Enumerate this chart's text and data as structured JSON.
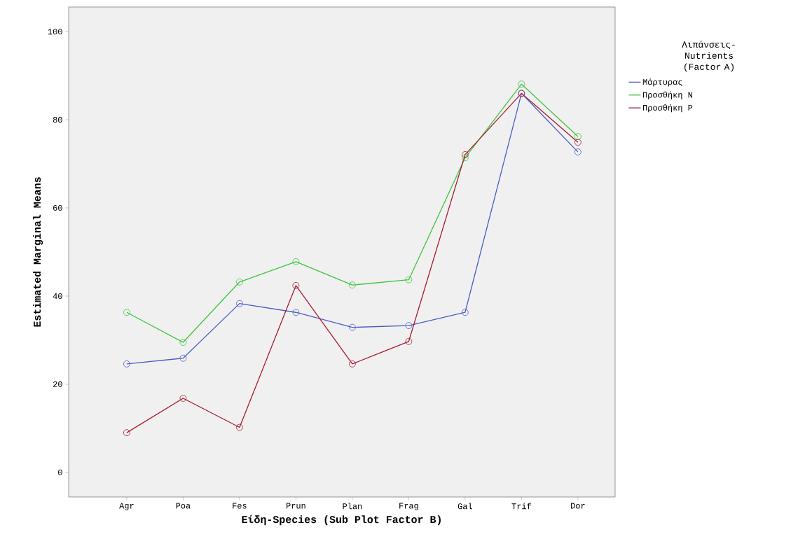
{
  "chart_data": {
    "type": "line",
    "xlabel": "Είδη-Species (Sub Plot Factor B)",
    "ylabel": "Estimated Marginal Means",
    "legend_title": "Λιπάνσεις-Nutrients (Factor A)",
    "categories": [
      "Agr",
      "Poa",
      "Fes",
      "Prun",
      "Plan",
      "Frag",
      "Gal",
      "Trif",
      "Dor"
    ],
    "series": [
      {
        "name": "Μάρτυρας",
        "color": "#4a5cc4",
        "values": [
          24.6,
          25.9,
          38.3,
          36.3,
          32.9,
          33.3,
          36.3,
          86.0,
          72.7
        ]
      },
      {
        "name": "Προσθήκη N",
        "color": "#3cc43c",
        "values": [
          36.3,
          29.5,
          43.2,
          47.8,
          42.5,
          43.7,
          71.4,
          88.1,
          76.2
        ]
      },
      {
        "name": "Προσθήκη P",
        "color": "#a51c30",
        "values": [
          9.0,
          16.8,
          10.2,
          42.4,
          24.6,
          29.7,
          72.1,
          86.0,
          74.9
        ]
      }
    ],
    "ylim": [
      -5.6,
      105.6
    ],
    "yticks": [
      0,
      20,
      40,
      60,
      80,
      100
    ],
    "grid": false,
    "legend": "right",
    "marker": "circle",
    "line_style": "solid"
  }
}
